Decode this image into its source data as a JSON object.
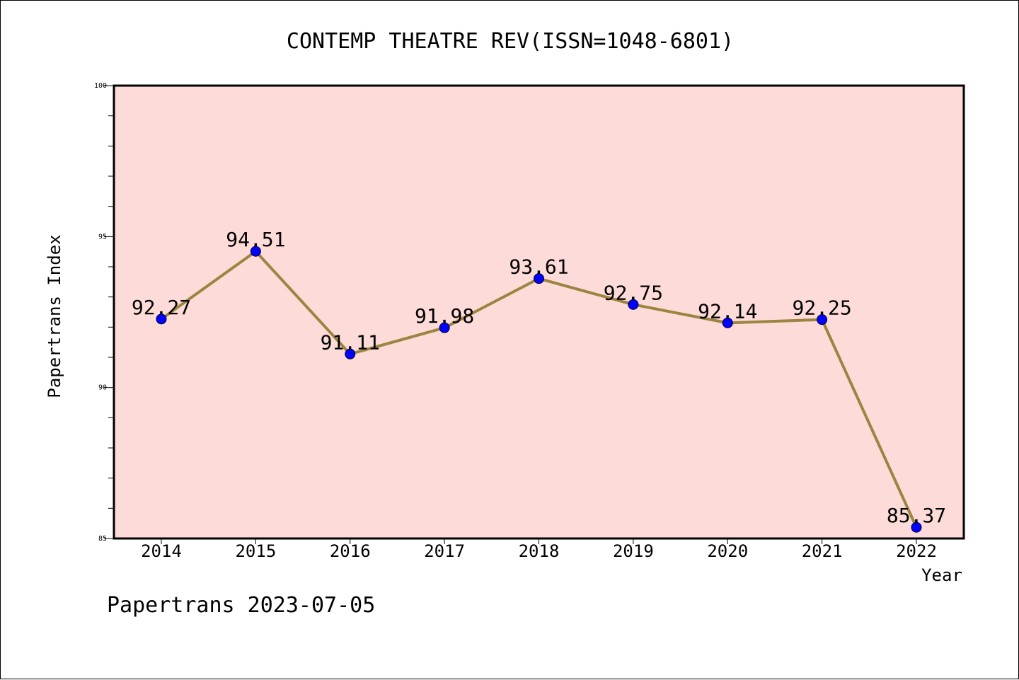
{
  "chart_data": {
    "type": "line",
    "title": "CONTEMP THEATRE REV(ISSN=1048-6801)",
    "xlabel": "Year",
    "ylabel": "Papertrans Index",
    "categories": [
      "2014",
      "2015",
      "2016",
      "2017",
      "2018",
      "2019",
      "2020",
      "2021",
      "2022"
    ],
    "values": [
      92.27,
      94.51,
      91.11,
      91.98,
      93.61,
      92.75,
      92.14,
      92.25,
      85.37
    ],
    "data_labels": [
      "92.27",
      "94.51",
      "91.11",
      "91.98",
      "93.61",
      "92.75",
      "92.14",
      "92.25",
      "85.37"
    ],
    "ylim": [
      85,
      100
    ],
    "yticks": [
      "85",
      "90",
      "95",
      "100"
    ],
    "grid": false,
    "legend": "none",
    "footer": "Papertrans 2023-07-05",
    "colors": {
      "plot_background": "#fddbd8",
      "line": "#9b8541",
      "marker": "#0000ff",
      "axes": "#000000"
    }
  }
}
